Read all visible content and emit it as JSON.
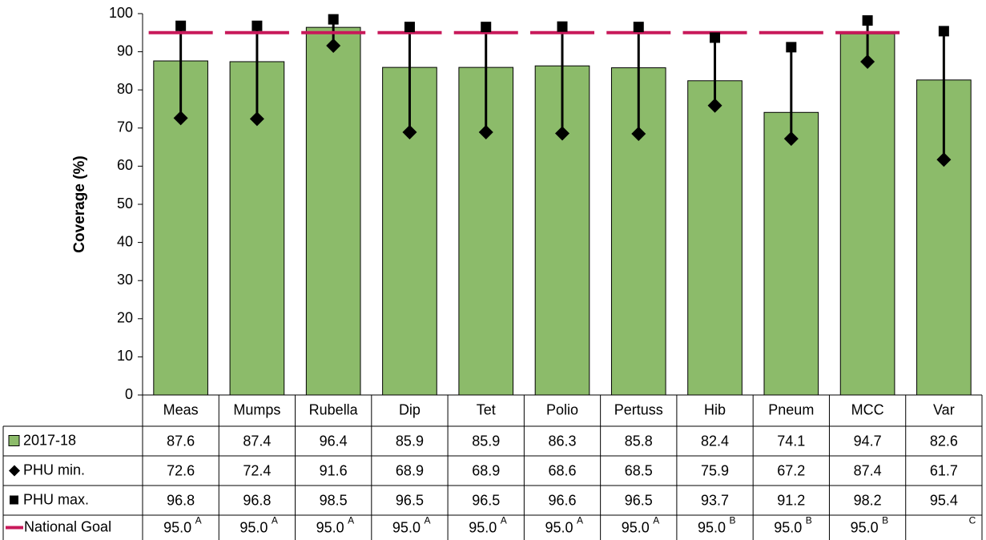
{
  "chart_data": {
    "type": "bar",
    "ylabel": "Coverage (%)",
    "ylim": [
      0,
      100
    ],
    "yticks": [
      "0",
      "10",
      "20",
      "30",
      "40",
      "50",
      "60",
      "70",
      "80",
      "90",
      "100"
    ],
    "grid": false,
    "categories": [
      "Meas",
      "Mumps",
      "Rubella",
      "Dip",
      "Tet",
      "Polio",
      "Pertuss",
      "Hib",
      "Pneum",
      "MCC",
      "Var"
    ],
    "series": [
      {
        "name": "2017-18",
        "kind": "bar",
        "color": "#8cbb6a",
        "values": [
          87.6,
          87.4,
          96.4,
          85.9,
          85.9,
          86.3,
          85.8,
          82.4,
          74.1,
          94.7,
          82.6
        ]
      },
      {
        "name": "PHU min.",
        "kind": "diamond-marker",
        "color": "#000000",
        "values": [
          72.6,
          72.4,
          91.6,
          68.9,
          68.9,
          68.6,
          68.5,
          75.9,
          67.2,
          87.4,
          61.7
        ]
      },
      {
        "name": "PHU max.",
        "kind": "square-marker",
        "color": "#000000",
        "values": [
          96.8,
          96.8,
          98.5,
          96.5,
          96.5,
          96.6,
          96.5,
          93.7,
          91.2,
          98.2,
          95.4
        ]
      },
      {
        "name": "National Goal",
        "kind": "goal-line",
        "color": "#c8195a",
        "values": [
          95.0,
          95.0,
          95.0,
          95.0,
          95.0,
          95.0,
          95.0,
          95.0,
          95.0,
          95.0,
          null
        ]
      }
    ],
    "table": {
      "rows": [
        {
          "label": "2017-18",
          "cells": [
            "87.6",
            "87.4",
            "96.4",
            "85.9",
            "85.9",
            "86.3",
            "85.8",
            "82.4",
            "74.1",
            "94.7",
            "82.6"
          ]
        },
        {
          "label": "PHU min.",
          "cells": [
            "72.6",
            "72.4",
            "91.6",
            "68.9",
            "68.9",
            "68.6",
            "68.5",
            "75.9",
            "67.2",
            "87.4",
            "61.7"
          ]
        },
        {
          "label": "PHU max.",
          "cells": [
            "96.8",
            "96.8",
            "98.5",
            "96.5",
            "96.5",
            "96.6",
            "96.5",
            "93.7",
            "91.2",
            "98.2",
            "95.4"
          ]
        },
        {
          "label": "National Goal",
          "cells": [
            "95.0",
            "95.0",
            "95.0",
            "95.0",
            "95.0",
            "95.0",
            "95.0",
            "95.0",
            "95.0",
            "95.0",
            ""
          ],
          "superscripts": [
            "A",
            "A",
            "A",
            "A",
            "A",
            "A",
            "A",
            "B",
            "B",
            "B",
            "C"
          ]
        }
      ]
    }
  }
}
